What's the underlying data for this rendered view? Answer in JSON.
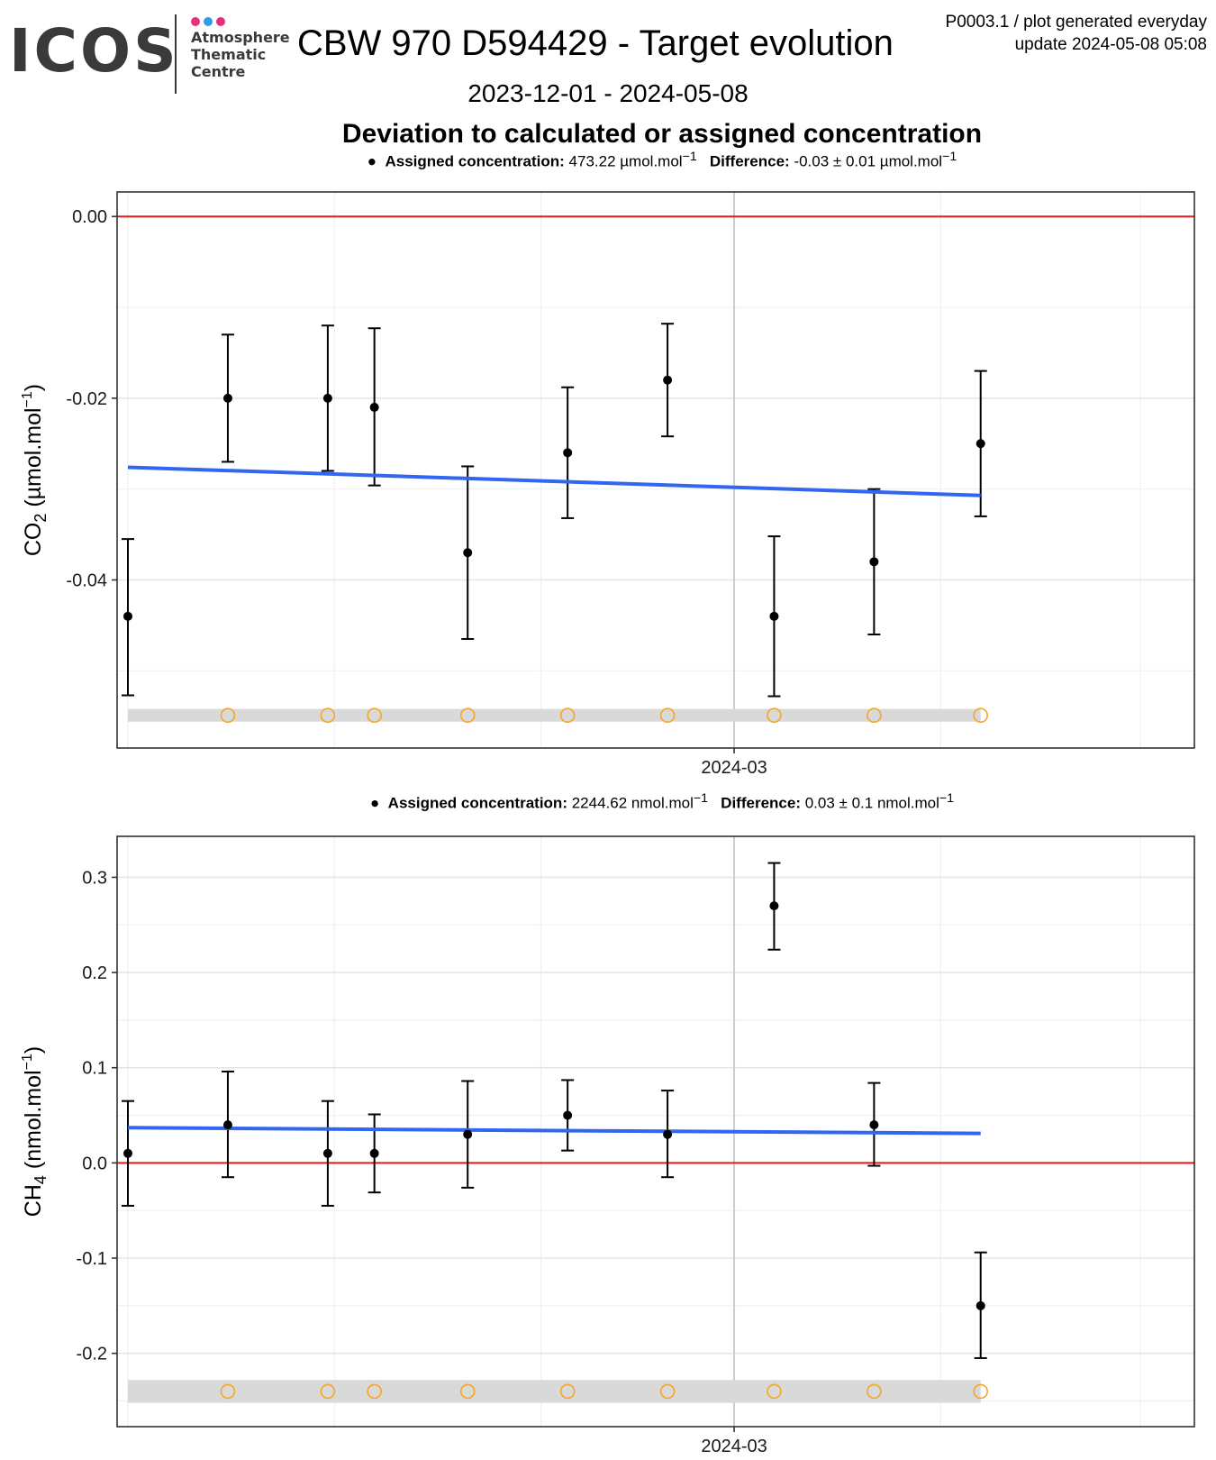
{
  "header": {
    "logo": {
      "wordmark": "ICOS",
      "subtitle_lines": [
        "Atmosphere",
        "Thematic",
        "Centre"
      ],
      "dot_colors": [
        "#e6307a",
        "#2e9fe6",
        "#e6307a"
      ]
    },
    "title": "CBW 970 D594429 - Target evolution",
    "meta_line1": "P0003.1 / plot generated everyday",
    "meta_line2": "update  2024-05-08 05:08",
    "date_range": "2023-12-01 - 2024-05-08",
    "subtitle": "Deviation to calculated or assigned concentration"
  },
  "colors": {
    "zero_line": "#e41a1c",
    "trend_line": "#3366ee",
    "points": "#000000",
    "flag_circle": "#f5a623",
    "flag_band": "#d9d9d9",
    "grid": "#e6e6e6"
  },
  "chart_data": [
    {
      "type": "scatter",
      "species": "CO2",
      "ylabel_main": "CO",
      "ylabel_sub": "2",
      "ylabel_unit": " (µmol.mol",
      "ylabel_sup": "−1",
      "ylabel_close": ")",
      "header": {
        "bullet": "●",
        "assigned_label": "Assigned concentration:",
        "assigned_value": "473.22 µmol.mol",
        "assigned_sup": "−1",
        "diff_label": "Difference:",
        "diff_value": "-0.03 ± 0.01 µmol.mol",
        "diff_sup": "−1"
      },
      "xlim": [
        "2023-12-01",
        "2024-05-08"
      ],
      "x_tick": {
        "date": "2024-03-01",
        "label": "2024-03"
      },
      "ylim": [
        -0.0585,
        0.0027
      ],
      "y_ticks": [
        0.0,
        -0.02,
        -0.04
      ],
      "y_tick_labels": [
        "0.00",
        "-0.02",
        "-0.04"
      ],
      "y_minor": [
        -0.01,
        -0.03,
        -0.05
      ],
      "zero_line": 0,
      "points": [
        {
          "x": "2023-12-01",
          "y": -0.044,
          "err_lo": -0.0527,
          "err_hi": -0.0355
        },
        {
          "x": "2023-12-16",
          "y": -0.02,
          "err_lo": -0.027,
          "err_hi": -0.013
        },
        {
          "x": "2023-12-31",
          "y": -0.02,
          "err_lo": -0.028,
          "err_hi": -0.012
        },
        {
          "x": "2024-01-07",
          "y": -0.021,
          "err_lo": -0.0296,
          "err_hi": -0.0123
        },
        {
          "x": "2024-01-21",
          "y": -0.037,
          "err_lo": -0.0465,
          "err_hi": -0.0275
        },
        {
          "x": "2024-02-05",
          "y": -0.026,
          "err_lo": -0.0332,
          "err_hi": -0.0188
        },
        {
          "x": "2024-02-20",
          "y": -0.018,
          "err_lo": -0.0242,
          "err_hi": -0.0118
        },
        {
          "x": "2024-03-07",
          "y": -0.044,
          "err_lo": -0.0528,
          "err_hi": -0.0352
        },
        {
          "x": "2024-03-22",
          "y": -0.038,
          "err_lo": -0.046,
          "err_hi": -0.03
        },
        {
          "x": "2024-04-07",
          "y": -0.025,
          "err_lo": -0.033,
          "err_hi": -0.017
        }
      ],
      "trend": {
        "x": [
          "2023-12-01",
          "2024-04-07"
        ],
        "y": [
          -0.0276,
          -0.0307
        ]
      },
      "flag_band": {
        "x": [
          "2023-12-01",
          "2024-04-07"
        ],
        "y": [
          -0.0556,
          -0.0542
        ]
      },
      "flags": [
        {
          "x": "2023-12-16",
          "y": -0.0549
        },
        {
          "x": "2023-12-31",
          "y": -0.0549
        },
        {
          "x": "2024-01-07",
          "y": -0.0549
        },
        {
          "x": "2024-01-21",
          "y": -0.0549
        },
        {
          "x": "2024-02-05",
          "y": -0.0549
        },
        {
          "x": "2024-02-20",
          "y": -0.0549
        },
        {
          "x": "2024-03-07",
          "y": -0.0549
        },
        {
          "x": "2024-03-22",
          "y": -0.0549
        },
        {
          "x": "2024-04-07",
          "y": -0.0549
        }
      ]
    },
    {
      "type": "scatter",
      "species": "CH4",
      "ylabel_main": "CH",
      "ylabel_sub": "4",
      "ylabel_unit": " (nmol.mol",
      "ylabel_sup": "−1",
      "ylabel_close": ")",
      "header": {
        "bullet": "●",
        "assigned_label": "Assigned concentration:",
        "assigned_value": "2244.62 nmol.mol",
        "assigned_sup": "−1",
        "diff_label": "Difference:",
        "diff_value": "0.03 ± 0.1 nmol.mol",
        "diff_sup": "−1"
      },
      "xlim": [
        "2023-12-01",
        "2024-05-08"
      ],
      "x_tick": {
        "date": "2024-03-01",
        "label": "2024-03"
      },
      "ylim": [
        -0.277,
        0.343
      ],
      "y_ticks": [
        0.3,
        0.2,
        0.1,
        0.0,
        -0.1,
        -0.2
      ],
      "y_tick_labels": [
        "0.3",
        "0.2",
        "0.1",
        "0.0",
        "-0.1",
        "-0.2"
      ],
      "y_minor": [
        0.25,
        0.15,
        0.05,
        -0.05,
        -0.15,
        -0.25
      ],
      "zero_line": 0,
      "points": [
        {
          "x": "2023-12-01",
          "y": 0.01,
          "err_lo": -0.045,
          "err_hi": 0.065
        },
        {
          "x": "2023-12-16",
          "y": 0.04,
          "err_lo": -0.015,
          "err_hi": 0.096
        },
        {
          "x": "2023-12-31",
          "y": 0.01,
          "err_lo": -0.045,
          "err_hi": 0.065
        },
        {
          "x": "2024-01-07",
          "y": 0.01,
          "err_lo": -0.031,
          "err_hi": 0.051
        },
        {
          "x": "2024-01-21",
          "y": 0.03,
          "err_lo": -0.026,
          "err_hi": 0.086
        },
        {
          "x": "2024-02-05",
          "y": 0.05,
          "err_lo": 0.013,
          "err_hi": 0.087
        },
        {
          "x": "2024-02-20",
          "y": 0.03,
          "err_lo": -0.015,
          "err_hi": 0.076
        },
        {
          "x": "2024-03-07",
          "y": 0.27,
          "err_lo": 0.224,
          "err_hi": 0.315
        },
        {
          "x": "2024-03-22",
          "y": 0.04,
          "err_lo": -0.003,
          "err_hi": 0.084
        },
        {
          "x": "2024-04-07",
          "y": -0.15,
          "err_lo": -0.205,
          "err_hi": -0.094
        }
      ],
      "trend": {
        "x": [
          "2023-12-01",
          "2024-04-07"
        ],
        "y": [
          0.037,
          0.031
        ]
      },
      "flag_band": {
        "x": [
          "2023-12-01",
          "2024-04-07"
        ],
        "y": [
          -0.252,
          -0.228
        ]
      },
      "flags": [
        {
          "x": "2023-12-16",
          "y": -0.24
        },
        {
          "x": "2023-12-31",
          "y": -0.24
        },
        {
          "x": "2024-01-07",
          "y": -0.24
        },
        {
          "x": "2024-01-21",
          "y": -0.24
        },
        {
          "x": "2024-02-05",
          "y": -0.24
        },
        {
          "x": "2024-02-20",
          "y": -0.24
        },
        {
          "x": "2024-03-07",
          "y": -0.24
        },
        {
          "x": "2024-03-22",
          "y": -0.24
        },
        {
          "x": "2024-04-07",
          "y": -0.24
        }
      ]
    }
  ]
}
